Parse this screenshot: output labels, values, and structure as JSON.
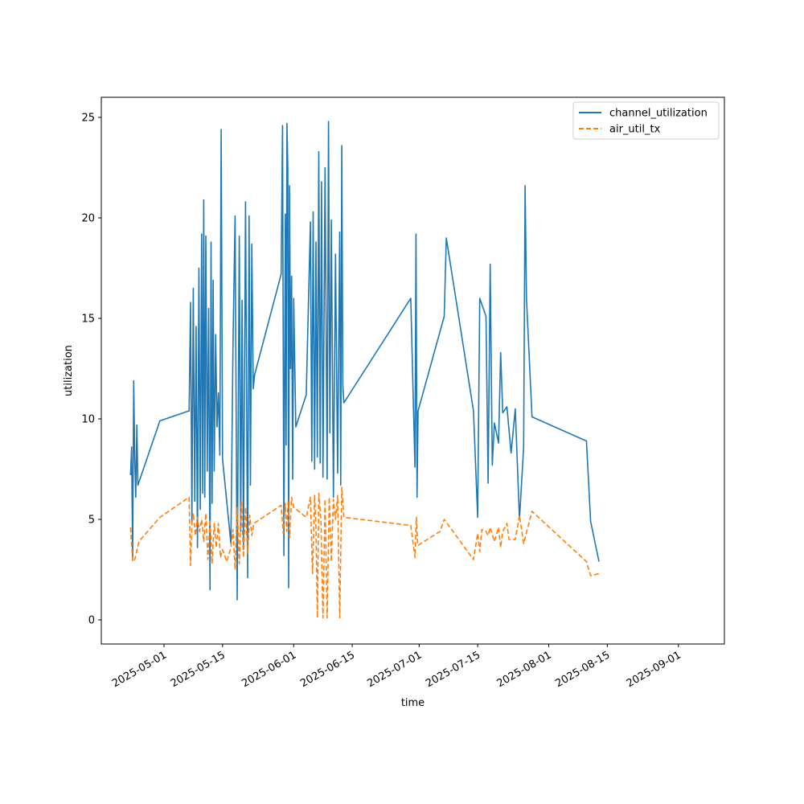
{
  "chart_data": {
    "type": "line",
    "title": "",
    "xlabel": "time",
    "ylabel": "utilization",
    "xlim": [
      "2025-04-16",
      "2025-09-12"
    ],
    "ylim": [
      -1.2,
      26.0
    ],
    "grid": false,
    "legend_position": "upper-right",
    "x_ticks": [
      {
        "date": "2025-05-01",
        "label": "2025-05-01"
      },
      {
        "date": "2025-05-15",
        "label": "2025-05-15"
      },
      {
        "date": "2025-06-01",
        "label": "2025-06-01"
      },
      {
        "date": "2025-06-15",
        "label": "2025-06-15"
      },
      {
        "date": "2025-07-01",
        "label": "2025-07-01"
      },
      {
        "date": "2025-07-15",
        "label": "2025-07-15"
      },
      {
        "date": "2025-08-01",
        "label": "2025-08-01"
      },
      {
        "date": "2025-08-15",
        "label": "2025-08-15"
      },
      {
        "date": "2025-09-01",
        "label": "2025-09-01"
      }
    ],
    "y_ticks": [
      {
        "value": 0,
        "label": "0"
      },
      {
        "value": 5,
        "label": "5"
      },
      {
        "value": 10,
        "label": "10"
      },
      {
        "value": 15,
        "label": "15"
      },
      {
        "value": 20,
        "label": "20"
      },
      {
        "value": 25,
        "label": "25"
      }
    ],
    "series": [
      {
        "name": "channel_utilization",
        "color": "#1f77b4",
        "dash": "solid",
        "points": [
          [
            "2025-04-23",
            7.2
          ],
          [
            "2025-04-23",
            8.6
          ],
          [
            "2025-04-23",
            3.0
          ],
          [
            "2025-04-23",
            11.9
          ],
          [
            "2025-04-24",
            8.0
          ],
          [
            "2025-04-24",
            6.1
          ],
          [
            "2025-04-24",
            9.7
          ],
          [
            "2025-04-24",
            6.7
          ],
          [
            "2025-04-30",
            9.9
          ],
          [
            "2025-05-07",
            10.4
          ],
          [
            "2025-05-07",
            15.8
          ],
          [
            "2025-05-07",
            4.8
          ],
          [
            "2025-05-08",
            16.5
          ],
          [
            "2025-05-08",
            5.9
          ],
          [
            "2025-05-08",
            14.6
          ],
          [
            "2025-05-09",
            3.6
          ],
          [
            "2025-05-09",
            17.5
          ],
          [
            "2025-05-09",
            5.5
          ],
          [
            "2025-05-10",
            19.2
          ],
          [
            "2025-05-10",
            6.3
          ],
          [
            "2025-05-10",
            20.9
          ],
          [
            "2025-05-10",
            6.1
          ],
          [
            "2025-05-11",
            19.1
          ],
          [
            "2025-05-11",
            7.4
          ],
          [
            "2025-05-11",
            15.5
          ],
          [
            "2025-05-12",
            1.5
          ],
          [
            "2025-05-12",
            18.8
          ],
          [
            "2025-05-12",
            5.8
          ],
          [
            "2025-05-12",
            16.9
          ],
          [
            "2025-05-13",
            7.4
          ],
          [
            "2025-05-13",
            14.2
          ],
          [
            "2025-05-13",
            9.6
          ],
          [
            "2025-05-14",
            11.3
          ],
          [
            "2025-05-14",
            8.2
          ],
          [
            "2025-05-14",
            24.4
          ],
          [
            "2025-05-15",
            8.0
          ],
          [
            "2025-05-17",
            3.8
          ],
          [
            "2025-05-17",
            13.7
          ],
          [
            "2025-05-18",
            20.1
          ],
          [
            "2025-05-18",
            1.0
          ],
          [
            "2025-05-19",
            19.1
          ],
          [
            "2025-05-19",
            4.4
          ],
          [
            "2025-05-19",
            15.9
          ],
          [
            "2025-05-20",
            3.5
          ],
          [
            "2025-05-20",
            20.8
          ],
          [
            "2025-05-21",
            2.1
          ],
          [
            "2025-05-21",
            20.1
          ],
          [
            "2025-05-21",
            6.7
          ],
          [
            "2025-05-22",
            18.7
          ],
          [
            "2025-05-22",
            11.5
          ],
          [
            "2025-05-22",
            12.2
          ],
          [
            "2025-05-29",
            17.2
          ],
          [
            "2025-05-29",
            24.6
          ],
          [
            "2025-05-29",
            3.2
          ],
          [
            "2025-05-30",
            20.2
          ],
          [
            "2025-05-30",
            8.7
          ],
          [
            "2025-05-30",
            24.7
          ],
          [
            "2025-05-30",
            22.4
          ],
          [
            "2025-05-30",
            1.6
          ],
          [
            "2025-05-31",
            21.6
          ],
          [
            "2025-05-31",
            12.5
          ],
          [
            "2025-05-31",
            17.1
          ],
          [
            "2025-05-31",
            7.0
          ],
          [
            "2025-06-01",
            16.0
          ],
          [
            "2025-06-01",
            9.6
          ],
          [
            "2025-06-04",
            11.2
          ],
          [
            "2025-06-05",
            19.8
          ],
          [
            "2025-06-05",
            7.9
          ],
          [
            "2025-06-05",
            20.3
          ],
          [
            "2025-06-06",
            7.5
          ],
          [
            "2025-06-06",
            18.8
          ],
          [
            "2025-06-06",
            8.1
          ],
          [
            "2025-06-07",
            23.3
          ],
          [
            "2025-06-07",
            7.8
          ],
          [
            "2025-06-07",
            21.8
          ],
          [
            "2025-06-08",
            7.1
          ],
          [
            "2025-06-08",
            22.5
          ],
          [
            "2025-06-09",
            7.0
          ],
          [
            "2025-06-09",
            24.8
          ],
          [
            "2025-06-09",
            9.3
          ],
          [
            "2025-06-10",
            19.9
          ],
          [
            "2025-06-10",
            6.1
          ],
          [
            "2025-06-11",
            18.2
          ],
          [
            "2025-06-11",
            7.3
          ],
          [
            "2025-06-12",
            19.3
          ],
          [
            "2025-06-12",
            6.7
          ],
          [
            "2025-06-12",
            23.6
          ],
          [
            "2025-06-12",
            11.7
          ],
          [
            "2025-06-13",
            10.8
          ],
          [
            "2025-06-29",
            16.0
          ],
          [
            "2025-06-30",
            7.6
          ],
          [
            "2025-06-30",
            19.2
          ],
          [
            "2025-06-30",
            6.1
          ],
          [
            "2025-06-30",
            10.4
          ],
          [
            "2025-07-07",
            15.1
          ],
          [
            "2025-07-07",
            19.0
          ],
          [
            "2025-07-14",
            10.4
          ],
          [
            "2025-07-15",
            5.1
          ],
          [
            "2025-07-15",
            16.0
          ],
          [
            "2025-07-17",
            15.1
          ],
          [
            "2025-07-17",
            6.8
          ],
          [
            "2025-07-18",
            17.7
          ],
          [
            "2025-07-18",
            7.7
          ],
          [
            "2025-07-19",
            9.8
          ],
          [
            "2025-07-20",
            8.8
          ],
          [
            "2025-07-20",
            13.3
          ],
          [
            "2025-07-21",
            10.3
          ],
          [
            "2025-07-22",
            10.6
          ],
          [
            "2025-07-23",
            8.3
          ],
          [
            "2025-07-24",
            10.5
          ],
          [
            "2025-07-25",
            5.0
          ],
          [
            "2025-07-26",
            8.6
          ],
          [
            "2025-07-26",
            21.6
          ],
          [
            "2025-07-26",
            16.0
          ],
          [
            "2025-07-28",
            10.1
          ],
          [
            "2025-08-10",
            8.9
          ],
          [
            "2025-08-11",
            4.9
          ],
          [
            "2025-08-13",
            2.9
          ]
        ]
      },
      {
        "name": "air_util_tx",
        "color": "#ff7f0e",
        "dash": "dashed",
        "points": [
          [
            "2025-04-23",
            4.6
          ],
          [
            "2025-04-23",
            2.9
          ],
          [
            "2025-04-24",
            3.0
          ],
          [
            "2025-04-25",
            3.9
          ],
          [
            "2025-04-30",
            5.1
          ],
          [
            "2025-05-07",
            6.1
          ],
          [
            "2025-05-07",
            2.7
          ],
          [
            "2025-05-07",
            4.8
          ],
          [
            "2025-05-08",
            5.3
          ],
          [
            "2025-05-08",
            4.2
          ],
          [
            "2025-05-09",
            5.1
          ],
          [
            "2025-05-09",
            4.4
          ],
          [
            "2025-05-10",
            5.0
          ],
          [
            "2025-05-10",
            3.9
          ],
          [
            "2025-05-11",
            5.3
          ],
          [
            "2025-05-11",
            3.0
          ],
          [
            "2025-05-12",
            5.0
          ],
          [
            "2025-05-12",
            2.8
          ],
          [
            "2025-05-13",
            4.8
          ],
          [
            "2025-05-13",
            3.6
          ],
          [
            "2025-05-14",
            4.8
          ],
          [
            "2025-05-14",
            3.1
          ],
          [
            "2025-05-15",
            3.5
          ],
          [
            "2025-05-16",
            2.9
          ],
          [
            "2025-05-17",
            3.6
          ],
          [
            "2025-05-17",
            4.5
          ],
          [
            "2025-05-18",
            2.5
          ],
          [
            "2025-05-18",
            5.6
          ],
          [
            "2025-05-19",
            2.8
          ],
          [
            "2025-05-19",
            5.9
          ],
          [
            "2025-05-20",
            3.1
          ],
          [
            "2025-05-20",
            5.6
          ],
          [
            "2025-05-21",
            3.3
          ],
          [
            "2025-05-21",
            5.2
          ],
          [
            "2025-05-22",
            4.2
          ],
          [
            "2025-05-22",
            4.8
          ],
          [
            "2025-05-29",
            5.7
          ],
          [
            "2025-05-29",
            4.3
          ],
          [
            "2025-05-30",
            5.8
          ],
          [
            "2025-05-30",
            4.4
          ],
          [
            "2025-05-30",
            5.9
          ],
          [
            "2025-05-31",
            4.1
          ],
          [
            "2025-05-31",
            6.1
          ],
          [
            "2025-06-01",
            5.6
          ],
          [
            "2025-06-04",
            5.1
          ],
          [
            "2025-06-05",
            6.1
          ],
          [
            "2025-06-05",
            2.3
          ],
          [
            "2025-06-06",
            6.2
          ],
          [
            "2025-06-06",
            4.6
          ],
          [
            "2025-06-06",
            0.1
          ],
          [
            "2025-06-07",
            6.3
          ],
          [
            "2025-06-07",
            5.0
          ],
          [
            "2025-06-08",
            0.1
          ],
          [
            "2025-06-08",
            6.0
          ],
          [
            "2025-06-09",
            0.1
          ],
          [
            "2025-06-09",
            6.1
          ],
          [
            "2025-06-10",
            2.9
          ],
          [
            "2025-06-10",
            6.0
          ],
          [
            "2025-06-11",
            5.0
          ],
          [
            "2025-06-11",
            6.2
          ],
          [
            "2025-06-12",
            0.1
          ],
          [
            "2025-06-12",
            6.6
          ],
          [
            "2025-06-13",
            5.1
          ],
          [
            "2025-06-29",
            4.7
          ],
          [
            "2025-06-30",
            3.1
          ],
          [
            "2025-06-30",
            5.1
          ],
          [
            "2025-06-30",
            3.7
          ],
          [
            "2025-07-06",
            4.4
          ],
          [
            "2025-07-07",
            5.0
          ],
          [
            "2025-07-14",
            3.0
          ],
          [
            "2025-07-15",
            4.3
          ],
          [
            "2025-07-15",
            3.4
          ],
          [
            "2025-07-16",
            4.5
          ],
          [
            "2025-07-17",
            4.4
          ],
          [
            "2025-07-17",
            4.2
          ],
          [
            "2025-07-18",
            4.6
          ],
          [
            "2025-07-19",
            3.9
          ],
          [
            "2025-07-20",
            4.6
          ],
          [
            "2025-07-20",
            3.6
          ],
          [
            "2025-07-21",
            4.4
          ],
          [
            "2025-07-22",
            4.8
          ],
          [
            "2025-07-22",
            4.0
          ],
          [
            "2025-07-24",
            4.0
          ],
          [
            "2025-07-25",
            5.2
          ],
          [
            "2025-07-26",
            3.8
          ],
          [
            "2025-07-28",
            5.4
          ],
          [
            "2025-08-10",
            2.9
          ],
          [
            "2025-08-11",
            2.2
          ],
          [
            "2025-08-13",
            2.3
          ]
        ]
      }
    ]
  }
}
